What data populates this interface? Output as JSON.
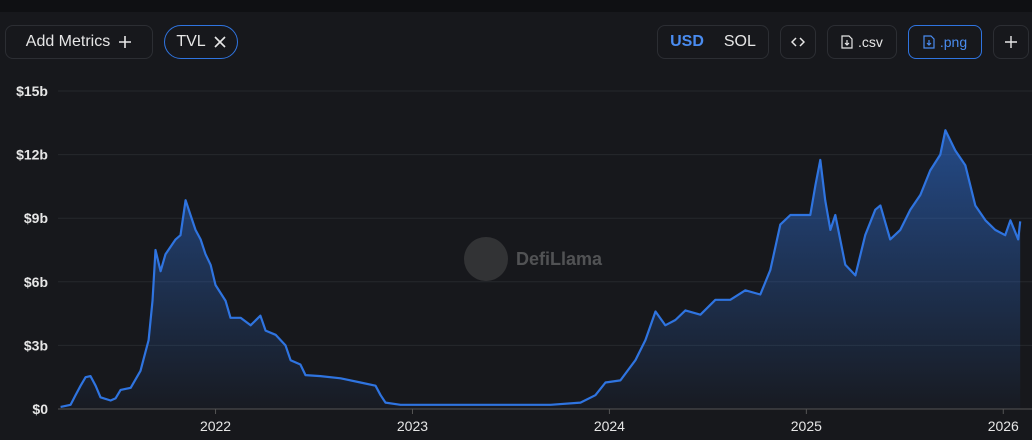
{
  "toolbar": {
    "add_metrics": "Add Metrics",
    "metric_chip": "TVL",
    "currencies": [
      "USD",
      "SOL"
    ],
    "exports": [
      ".csv",
      ".png"
    ]
  },
  "watermark": "DefiLlama",
  "chart_data": {
    "type": "area",
    "x": [
      2021.213,
      2021.264,
      2021.289,
      2021.315,
      2021.34,
      2021.365,
      2021.391,
      2021.416,
      2021.467,
      2021.492,
      2021.518,
      2021.569,
      2021.619,
      2021.66,
      2021.68,
      2021.695,
      2021.721,
      2021.746,
      2021.797,
      2021.822,
      2021.848,
      2021.873,
      2021.898,
      2021.924,
      2021.949,
      2021.975,
      2022.0,
      2022.051,
      2022.076,
      2022.127,
      2022.178,
      2022.228,
      2022.254,
      2022.305,
      2022.355,
      2022.381,
      2022.431,
      2022.457,
      2022.533,
      2022.635,
      2022.736,
      2022.812,
      2022.838,
      2022.863,
      2022.939,
      2023.193,
      2023.447,
      2023.701,
      2023.853,
      2023.929,
      2023.98,
      2024.056,
      2024.132,
      2024.183,
      2024.234,
      2024.284,
      2024.335,
      2024.386,
      2024.462,
      2024.538,
      2024.614,
      2024.69,
      2024.766,
      2024.817,
      2024.868,
      2024.919,
      2024.97,
      2025.02,
      2025.046,
      2025.071,
      2025.096,
      2025.122,
      2025.147,
      2025.198,
      2025.249,
      2025.299,
      2025.35,
      2025.376,
      2025.426,
      2025.477,
      2025.528,
      2025.579,
      2025.629,
      2025.68,
      2025.706,
      2025.756,
      2025.807,
      2025.858,
      2025.909,
      2025.959,
      2026.01,
      2026.036,
      2026.076,
      2026.086
    ],
    "values": [
      0.1,
      0.2,
      0.65,
      1.1,
      1.5,
      1.55,
      1.1,
      0.55,
      0.4,
      0.5,
      0.9,
      1.0,
      1.8,
      3.25,
      5.1,
      7.5,
      6.5,
      7.3,
      8.0,
      8.2,
      9.85,
      9.15,
      8.45,
      8.0,
      7.3,
      6.8,
      5.85,
      5.1,
      4.3,
      4.3,
      3.95,
      4.4,
      3.7,
      3.5,
      3.0,
      2.3,
      2.1,
      1.6,
      1.55,
      1.45,
      1.25,
      1.1,
      0.65,
      0.3,
      0.2,
      0.2,
      0.2,
      0.2,
      0.3,
      0.65,
      1.25,
      1.35,
      2.3,
      3.25,
      4.6,
      3.95,
      4.2,
      4.65,
      4.45,
      5.15,
      5.15,
      5.6,
      5.4,
      6.55,
      8.7,
      9.15,
      9.15,
      9.15,
      10.55,
      11.75,
      9.85,
      8.45,
      9.15,
      6.8,
      6.3,
      8.2,
      9.4,
      9.6,
      8.0,
      8.45,
      9.4,
      10.1,
      11.25,
      12.0,
      13.15,
      12.2,
      11.5,
      9.6,
      8.9,
      8.45,
      8.2,
      8.9,
      8.0,
      8.85
    ],
    "color": "#2f74e0",
    "xlim": [
      2021.2,
      2026.09
    ],
    "xticks": [
      2022,
      2023,
      2024,
      2025,
      2026
    ],
    "ylim": [
      0,
      15
    ],
    "yticks": [
      {
        "value": 0,
        "label": "$0"
      },
      {
        "value": 3,
        "label": "$3b"
      },
      {
        "value": 6,
        "label": "$6b"
      },
      {
        "value": 9,
        "label": "$9b"
      },
      {
        "value": 12,
        "label": "$12b"
      },
      {
        "value": 15,
        "label": "$15b"
      }
    ],
    "grid": true
  }
}
